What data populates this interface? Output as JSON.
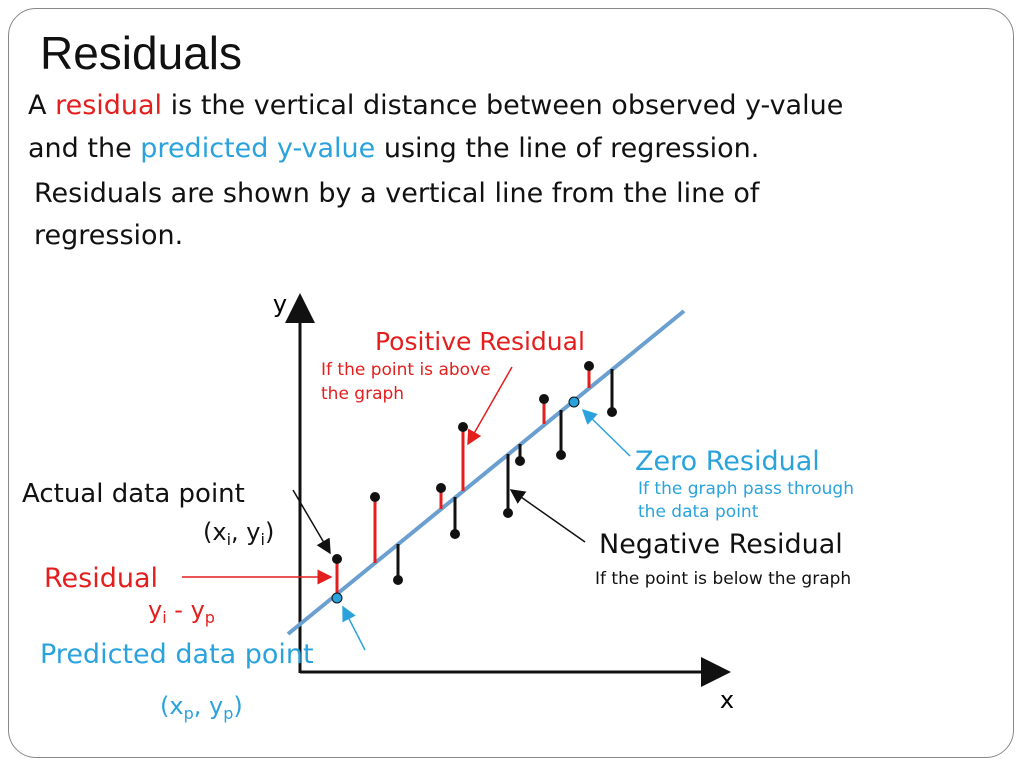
{
  "title": "Residuals",
  "intro": {
    "line1": [
      "A",
      "residual",
      "is the vertical distance between observed y-value"
    ],
    "line2": [
      "and the",
      "predicted y-value",
      "using the line of regression."
    ],
    "line3": "Residuals are shown by a vertical line from the line of",
    "line4": "regression."
  },
  "diagram": {
    "y_axis": "y",
    "x_axis": "x",
    "positive": {
      "label": "Positive Residual",
      "note": [
        "If the point is above",
        "the graph"
      ]
    },
    "zero": {
      "label": "Zero Residual",
      "note": [
        "If the graph pass through",
        "the data point"
      ]
    },
    "negative": {
      "label": "Negative Residual",
      "note": "If the point is below the graph"
    },
    "actual": {
      "label": "Actual data point",
      "coords": [
        "(x",
        "i",
        ", y",
        "i",
        ")"
      ]
    },
    "residual": {
      "label": "Residual",
      "formula": [
        "y",
        "i",
        " - y",
        "p"
      ]
    },
    "predicted": {
      "label": "Predicted data point",
      "coords": [
        "(x",
        "p",
        ", y",
        "p",
        ")"
      ]
    }
  }
}
